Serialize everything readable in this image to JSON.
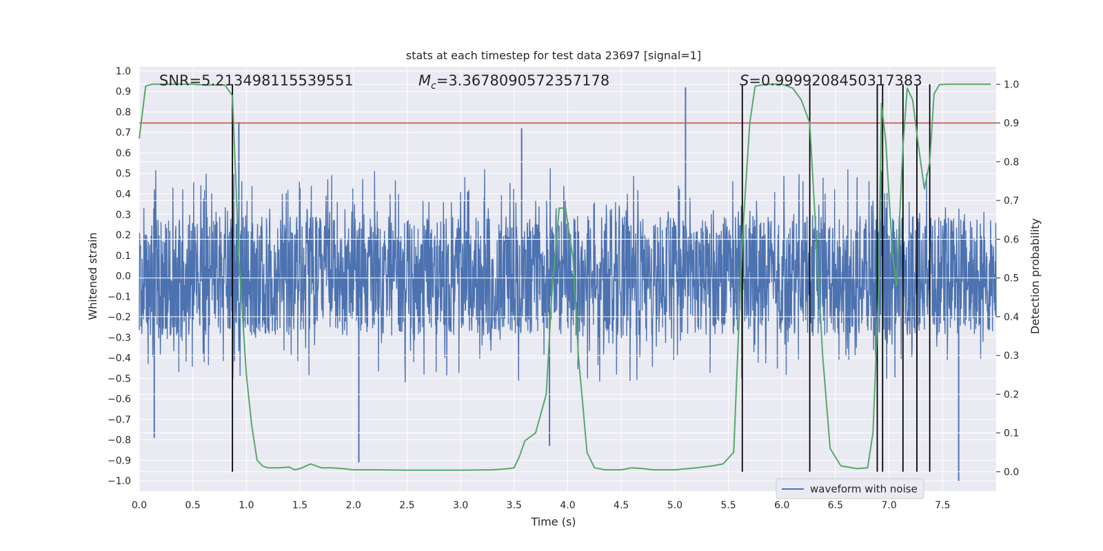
{
  "chart_data": {
    "type": "line",
    "title": "stats at each timestep for test data 23697 [signal=1]",
    "xlabel": "Time (s)",
    "ylabel": "Whitened strain",
    "y2label": "Detection probability",
    "xlim": [
      0.0,
      8.0
    ],
    "ylim": [
      -1.05,
      1.02
    ],
    "y2lim": [
      -0.05,
      1.045
    ],
    "xticks": [
      0.0,
      0.5,
      1.0,
      1.5,
      2.0,
      2.5,
      3.0,
      3.5,
      4.0,
      4.5,
      5.0,
      5.5,
      6.0,
      6.5,
      7.0,
      7.5
    ],
    "yticks": [
      -1.0,
      -0.9,
      -0.8,
      -0.7,
      -0.6,
      -0.5,
      -0.4,
      -0.3,
      -0.2,
      -0.1,
      0.0,
      0.1,
      0.2,
      0.3,
      0.4,
      0.5,
      0.6,
      0.7,
      0.8,
      0.9,
      1.0
    ],
    "y2ticks": [
      0.0,
      0.1,
      0.2,
      0.3,
      0.4,
      0.5,
      0.6,
      0.7,
      0.8,
      0.9,
      1.0
    ],
    "annotations": {
      "snr": "SNR=5.213498115539551",
      "mc_symbol": "M",
      "mc_sub": "c",
      "mc_value": "=3.3678090572357178",
      "s_symbol": "S",
      "s_value": "=0.9999208450317383"
    },
    "legend": {
      "label": "waveform with noise",
      "placement": "lower-right"
    },
    "colors": {
      "waveform": "#4c72b0",
      "probability": "#55a868",
      "threshold": "#c44e52",
      "events": "#000000",
      "plot_bg": "#eaeaf2",
      "grid": "#ffffff"
    },
    "waveform": {
      "name": "waveform with noise",
      "duration": 8.0,
      "envelope_min": -1.0,
      "envelope_max": 0.92,
      "peaks": [
        {
          "x": 0.14,
          "y": -0.79
        },
        {
          "x": 0.93,
          "y": 0.75
        },
        {
          "x": 2.05,
          "y": -0.91
        },
        {
          "x": 3.57,
          "y": 0.72
        },
        {
          "x": 3.83,
          "y": -0.83
        },
        {
          "x": 5.1,
          "y": 0.92
        },
        {
          "x": 7.65,
          "y": -1.0
        }
      ]
    },
    "threshold": {
      "y": 0.9
    },
    "event_times": [
      0.87,
      5.63,
      6.26,
      6.89,
      6.94,
      7.13,
      7.26,
      7.38
    ],
    "probability": {
      "name": "Detection probability",
      "x": [
        0.0,
        0.06,
        0.12,
        0.5,
        0.6,
        0.8,
        0.87,
        0.93,
        1.0,
        1.05,
        1.1,
        1.15,
        1.2,
        1.3,
        1.4,
        1.45,
        1.5,
        1.6,
        1.7,
        1.8,
        1.9,
        2.0,
        2.2,
        2.5,
        3.0,
        3.3,
        3.45,
        3.5,
        3.55,
        3.6,
        3.7,
        3.8,
        3.85,
        3.92,
        3.98,
        4.05,
        4.1,
        4.18,
        4.25,
        4.35,
        4.5,
        4.6,
        4.7,
        4.8,
        5.0,
        5.2,
        5.35,
        5.45,
        5.55,
        5.63,
        5.7,
        5.75,
        5.85,
        6.0,
        6.1,
        6.18,
        6.26,
        6.3,
        6.38,
        6.45,
        6.55,
        6.7,
        6.8,
        6.85,
        6.9,
        6.93,
        6.97,
        7.03,
        7.07,
        7.13,
        7.17,
        7.22,
        7.27,
        7.33,
        7.38,
        7.42,
        7.47,
        7.55,
        7.7,
        7.95
      ],
      "y": [
        0.86,
        0.995,
        1.0,
        1.0,
        0.998,
        0.998,
        0.97,
        0.55,
        0.25,
        0.12,
        0.03,
        0.015,
        0.01,
        0.01,
        0.012,
        0.005,
        0.008,
        0.02,
        0.01,
        0.01,
        0.008,
        0.005,
        0.005,
        0.004,
        0.004,
        0.005,
        0.008,
        0.01,
        0.04,
        0.08,
        0.1,
        0.2,
        0.45,
        0.68,
        0.68,
        0.55,
        0.3,
        0.05,
        0.01,
        0.005,
        0.005,
        0.01,
        0.008,
        0.005,
        0.005,
        0.01,
        0.015,
        0.02,
        0.05,
        0.6,
        0.9,
        0.995,
        1.0,
        1.0,
        0.99,
        0.96,
        0.9,
        0.7,
        0.3,
        0.06,
        0.015,
        0.008,
        0.01,
        0.1,
        0.45,
        0.95,
        0.85,
        0.57,
        0.48,
        0.84,
        0.99,
        0.96,
        0.85,
        0.73,
        0.8,
        0.975,
        0.999,
        1.0,
        1.0,
        1.0
      ]
    }
  }
}
